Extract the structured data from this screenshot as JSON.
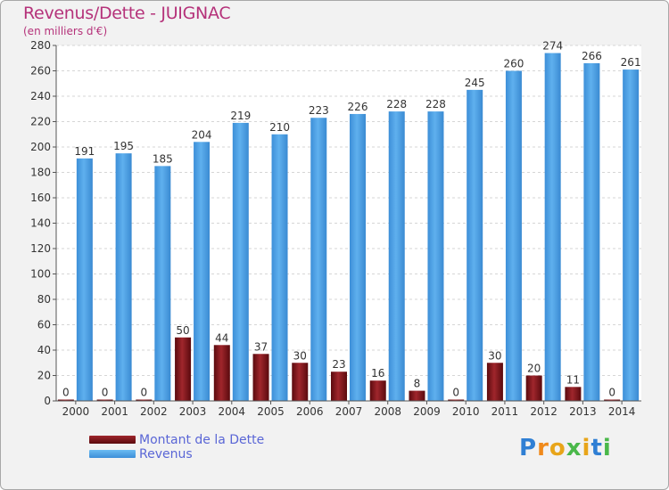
{
  "header": {
    "title": "Revenus/Dette - JUIGNAC",
    "subtitle": "(en milliers d'€)"
  },
  "legend": {
    "items": [
      {
        "label": "Montant de la Dette",
        "color": "#7a0f14"
      },
      {
        "label": "Revenus",
        "color": "#4fa3e6"
      }
    ]
  },
  "logo": {
    "text": "Proxiti",
    "letters": [
      {
        "ch": "P",
        "color": "#2f7fd4"
      },
      {
        "ch": "r",
        "color": "#f08a1c"
      },
      {
        "ch": "o",
        "color": "#e8a51a"
      },
      {
        "ch": "x",
        "color": "#4ab84a"
      },
      {
        "ch": "i",
        "color": "#e8a51a"
      },
      {
        "ch": "t",
        "color": "#2f7fd4"
      },
      {
        "ch": "i",
        "color": "#4ab84a"
      }
    ]
  },
  "chart_data": {
    "type": "bar",
    "categories": [
      "2000",
      "2001",
      "2002",
      "2003",
      "2004",
      "2005",
      "2006",
      "2007",
      "2008",
      "2009",
      "2010",
      "2011",
      "2012",
      "2013",
      "2014"
    ],
    "series": [
      {
        "name": "Montant de la Dette",
        "color": "#7a0f14",
        "values": [
          0,
          0,
          0,
          50,
          44,
          37,
          30,
          23,
          16,
          8,
          0,
          30,
          20,
          11,
          0
        ]
      },
      {
        "name": "Revenus",
        "color": "#4fa3e6",
        "values": [
          191,
          195,
          185,
          204,
          219,
          210,
          223,
          226,
          228,
          228,
          245,
          260,
          274,
          266,
          261
        ]
      }
    ],
    "yticks": [
      0,
      20,
      40,
      60,
      80,
      100,
      120,
      140,
      160,
      180,
      200,
      220,
      240,
      260,
      280
    ],
    "ylim": [
      0,
      280
    ],
    "grid": true,
    "legend_position": "bottom-left"
  }
}
